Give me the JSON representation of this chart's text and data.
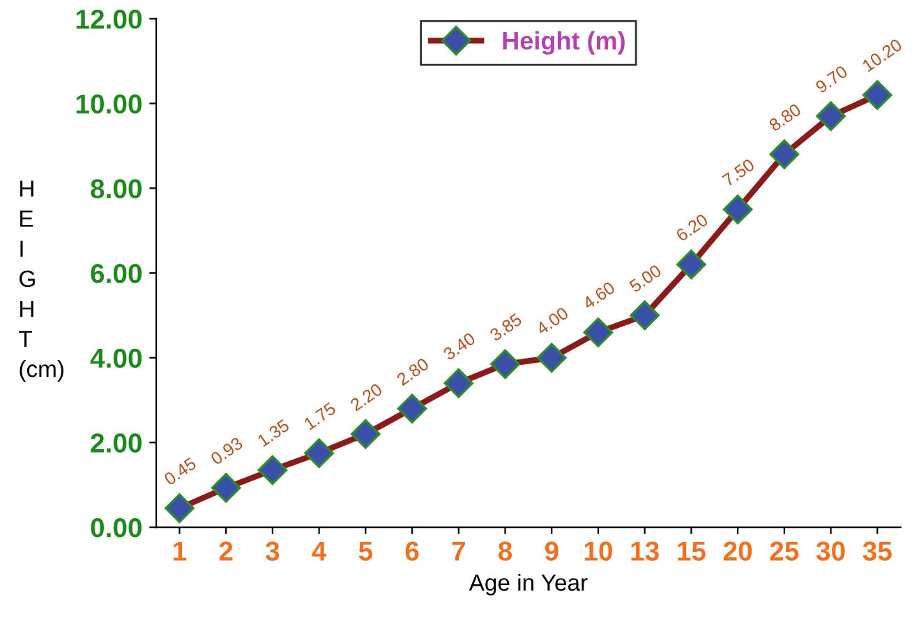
{
  "chart_data": {
    "type": "line",
    "xlabel": "Age in Year",
    "ylabel": "H\nE\nI\nG\nH\nT\n(cm)",
    "categories": [
      "1",
      "2",
      "3",
      "4",
      "5",
      "6",
      "7",
      "8",
      "9",
      "10",
      "13",
      "15",
      "20",
      "25",
      "30",
      "35"
    ],
    "series": [
      {
        "name": "Height (m)",
        "color": "#8b1a1a",
        "values": [
          0.45,
          0.93,
          1.35,
          1.75,
          2.2,
          2.8,
          3.4,
          3.85,
          4.0,
          4.6,
          5.0,
          6.2,
          7.5,
          8.8,
          9.7,
          10.2
        ],
        "value_labels": [
          "0.45",
          "0.93",
          "1.35",
          "1.75",
          "2.20",
          "2.80",
          "3.40",
          "3.85",
          "4.00",
          "4.60",
          "5.00",
          "6.20",
          "7.50",
          "8.80",
          "9.70",
          "10.20"
        ]
      }
    ],
    "ylim": [
      0,
      12
    ],
    "yticks": [
      {
        "value": 0,
        "label": "0.00"
      },
      {
        "value": 2,
        "label": "2.00"
      },
      {
        "value": 4,
        "label": "4.00"
      },
      {
        "value": 6,
        "label": "6.00"
      },
      {
        "value": 8,
        "label": "8.00"
      },
      {
        "value": 10,
        "label": "10.00"
      },
      {
        "value": 12,
        "label": "12.00"
      }
    ],
    "marker": "diamond",
    "line_style": "solid",
    "grid": false,
    "legend": "top"
  }
}
